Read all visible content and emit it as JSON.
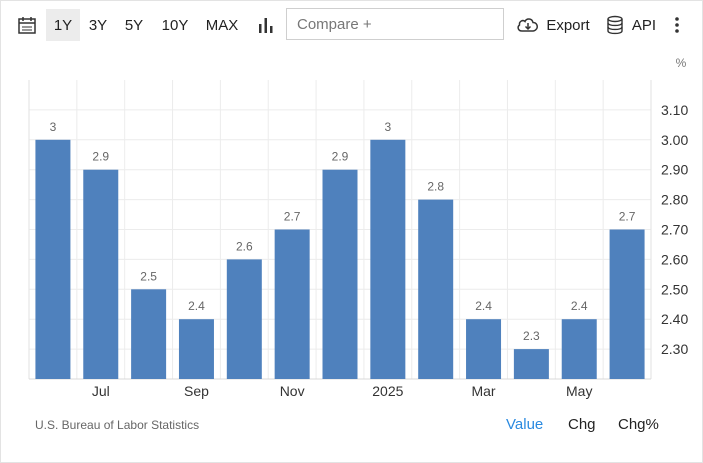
{
  "toolbar": {
    "ranges": [
      "1Y",
      "3Y",
      "5Y",
      "10Y",
      "MAX"
    ],
    "active_range": "1Y",
    "compare_placeholder": "Compare +",
    "export_label": "Export",
    "api_label": "API"
  },
  "footer": {
    "source": "U.S. Bureau of Labor Statistics",
    "tabs": [
      "Value",
      "Chg",
      "Chg%"
    ],
    "active_tab": "Value"
  },
  "colors": {
    "bar": "#4f81bd",
    "active_tab": "#2a8ae0"
  },
  "chart_data": {
    "type": "bar",
    "values": [
      3.0,
      2.9,
      2.5,
      2.4,
      2.6,
      2.7,
      2.9,
      3.0,
      2.8,
      2.4,
      2.3,
      2.4,
      2.7
    ],
    "data_labels": [
      "3",
      "2.9",
      "2.5",
      "2.4",
      "2.6",
      "2.7",
      "2.9",
      "3",
      "2.8",
      "2.4",
      "2.3",
      "2.4",
      "2.7"
    ],
    "x_tick_labels": [
      {
        "index": 1,
        "label": "Jul"
      },
      {
        "index": 3,
        "label": "Sep"
      },
      {
        "index": 5,
        "label": "Nov"
      },
      {
        "index": 7,
        "label": "2025"
      },
      {
        "index": 9,
        "label": "Mar"
      },
      {
        "index": 11,
        "label": "May"
      }
    ],
    "y_ticks": [
      2.3,
      2.4,
      2.5,
      2.6,
      2.7,
      2.8,
      2.9,
      3.0,
      3.1
    ],
    "y_tick_labels": [
      "2.30",
      "2.40",
      "2.50",
      "2.60",
      "2.70",
      "2.80",
      "2.90",
      "3.00",
      "3.10"
    ],
    "yunit": "%",
    "ylim": [
      2.2,
      3.2
    ],
    "grid": true
  }
}
